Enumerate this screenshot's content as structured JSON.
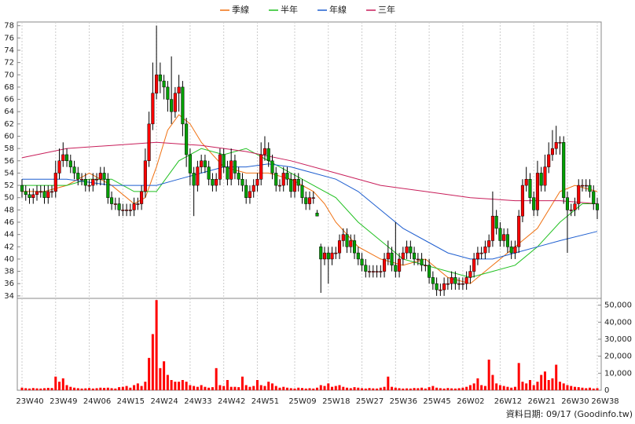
{
  "chart_data": {
    "type": "candlestick",
    "legend": [
      {
        "name": "季線",
        "color": "#f07010"
      },
      {
        "name": "半年",
        "color": "#20c020"
      },
      {
        "name": "年線",
        "color": "#1f5fd0"
      },
      {
        "name": "三年",
        "color": "#c81e5a"
      }
    ],
    "footer": "資料日期: 09/17 (Goodinfo.tw)",
    "up_color": "#ff0000",
    "down_color": "#00a000",
    "grid": true,
    "categories": [
      "23W40",
      null,
      null,
      null,
      null,
      null,
      null,
      null,
      null,
      "23W49",
      null,
      null,
      null,
      null,
      null,
      null,
      null,
      null,
      "24W06",
      null,
      null,
      null,
      null,
      null,
      null,
      null,
      null,
      "24W15",
      null,
      null,
      null,
      null,
      null,
      null,
      null,
      null,
      "24W24",
      null,
      null,
      null,
      null,
      null,
      null,
      null,
      null,
      "24W33",
      null,
      null,
      null,
      null,
      null,
      null,
      null,
      null,
      "24W42",
      null,
      null,
      null,
      null,
      null,
      null,
      null,
      null,
      "24W51",
      null,
      null,
      null,
      null,
      null,
      null,
      null,
      null,
      null,
      "25W09",
      null,
      null,
      null,
      null,
      null,
      null,
      null,
      null,
      "25W18",
      null,
      null,
      null,
      null,
      null,
      null,
      null,
      null,
      "25W27",
      null,
      null,
      null,
      null,
      null,
      null,
      null,
      null,
      "25W36",
      null,
      null,
      null,
      null,
      null,
      null,
      null,
      null,
      "25W45",
      null,
      null,
      null,
      null,
      null,
      null,
      null,
      null,
      "26W02",
      null,
      null,
      null,
      null,
      null,
      null,
      null,
      null,
      null,
      "26W12",
      null,
      null,
      null,
      null,
      null,
      null,
      null,
      null,
      "26W21",
      null,
      null,
      null,
      null,
      null,
      null,
      null,
      null,
      "26W30",
      null,
      null,
      null,
      null,
      null,
      null,
      null,
      "26W38"
    ],
    "open": [
      52,
      51,
      50.5,
      50,
      50.5,
      51,
      51,
      50,
      51,
      51,
      54,
      56,
      57,
      56,
      55,
      54,
      53,
      53,
      52,
      52,
      53,
      53,
      54,
      53,
      50,
      49,
      49,
      48,
      48,
      48,
      48,
      49,
      49,
      51,
      56,
      62,
      67,
      70,
      69,
      68,
      66,
      64,
      67,
      68,
      62,
      57,
      54,
      52,
      55,
      56,
      55,
      53,
      52,
      53,
      57,
      55,
      53,
      56,
      54,
      53,
      52,
      50,
      51,
      52,
      53,
      57,
      58,
      56,
      54,
      52,
      52,
      54,
      53,
      51,
      53,
      52,
      50,
      49,
      50,
      47.5,
      42,
      40,
      41,
      40,
      41,
      41,
      43,
      44,
      42,
      43,
      41,
      40,
      39,
      38,
      38,
      38,
      38,
      38,
      40,
      41,
      39,
      38,
      40,
      41,
      42,
      41,
      40,
      40,
      39,
      39,
      37,
      36,
      35,
      35,
      36,
      36,
      37,
      36,
      36,
      36,
      37,
      38,
      40,
      41,
      41,
      42,
      43,
      47,
      45,
      43,
      44,
      42,
      41,
      42,
      47,
      52,
      53,
      50,
      48,
      54,
      52,
      55,
      57,
      58,
      59,
      59,
      50,
      48,
      48,
      49,
      52,
      52,
      52,
      51,
      49
    ],
    "high": [
      53,
      52,
      51.5,
      51.5,
      52,
      52,
      52,
      52,
      52,
      56,
      58,
      59,
      58,
      57,
      56,
      55,
      54,
      54,
      53,
      54,
      54,
      55,
      55,
      54,
      51,
      50,
      50,
      49,
      49,
      49,
      50,
      50,
      52,
      58,
      64,
      72,
      78,
      72,
      70,
      69,
      73,
      68,
      70,
      69,
      63,
      58,
      55,
      56,
      57,
      57,
      56,
      54,
      54,
      58,
      58,
      56,
      58,
      57,
      55,
      54,
      53,
      52,
      53,
      54,
      59,
      60,
      59,
      57,
      55,
      53,
      55,
      55,
      54,
      54,
      54,
      53,
      51,
      51,
      51,
      48,
      42.5,
      42,
      42,
      42,
      42,
      44,
      45,
      45,
      44,
      44,
      42,
      41,
      40,
      39,
      39,
      39,
      39,
      41,
      43,
      42,
      46,
      41,
      42,
      43,
      43,
      42,
      41,
      41,
      40,
      40,
      38,
      37,
      36,
      37,
      37,
      38,
      38,
      37,
      37,
      38,
      39,
      41,
      42,
      42,
      43,
      44,
      51,
      48,
      46,
      45,
      45,
      43,
      43,
      48,
      53,
      55,
      54,
      51,
      56,
      55,
      57,
      59,
      61,
      61.7,
      60,
      60,
      51,
      49,
      50,
      53,
      53,
      53,
      53,
      52,
      50
    ],
    "low": [
      50,
      49.5,
      49,
      49,
      49.5,
      50,
      49,
      49,
      50,
      50,
      53,
      55,
      55,
      54,
      53,
      52,
      52,
      51,
      51,
      51,
      52,
      52,
      52,
      49,
      48,
      48,
      47,
      47,
      47,
      47,
      47,
      48,
      48,
      50,
      55,
      61,
      66,
      67,
      66,
      64,
      62,
      63,
      64,
      60,
      55,
      52,
      47,
      51,
      54,
      54,
      52,
      51,
      51,
      52,
      54,
      52,
      52,
      53,
      52,
      51,
      49,
      49,
      50,
      51,
      52,
      56,
      55,
      53,
      51,
      51,
      51,
      52,
      50,
      50,
      51,
      49,
      48,
      48,
      49,
      47,
      34.5,
      39,
      36,
      39,
      40,
      40,
      42,
      41,
      41,
      40,
      39,
      38,
      37,
      37,
      37,
      37,
      37,
      37,
      39,
      38,
      37,
      37,
      39,
      40,
      40,
      39,
      39,
      38,
      38,
      36,
      35,
      34,
      34,
      34,
      35,
      35,
      35,
      35,
      35,
      35,
      36,
      37,
      39,
      40,
      40,
      41,
      42,
      44,
      42,
      42,
      41,
      40,
      40,
      41,
      46,
      51,
      49,
      47,
      47,
      51,
      51,
      54,
      56,
      57,
      57,
      49,
      41,
      47,
      47,
      48,
      51,
      51,
      50,
      48,
      46.5
    ],
    "close": [
      51,
      50.5,
      50,
      50.5,
      51,
      51,
      50,
      51,
      51,
      54,
      56,
      57,
      56,
      55,
      54,
      53,
      53,
      52,
      52,
      53,
      53,
      54,
      53,
      50,
      49,
      49,
      48,
      48,
      48,
      48,
      49,
      49,
      51,
      56,
      62,
      67,
      70,
      69,
      68,
      66,
      64,
      67,
      68,
      62,
      57,
      54,
      52,
      55,
      56,
      55,
      53,
      52,
      53,
      57,
      55,
      53,
      56,
      54,
      53,
      52,
      50,
      51,
      52,
      53,
      57,
      58,
      56,
      54,
      52,
      52,
      54,
      53,
      51,
      53,
      52,
      50,
      49,
      50,
      50,
      47,
      40,
      41,
      40,
      41,
      41,
      43,
      44,
      42,
      43,
      41,
      40,
      39,
      38,
      38,
      38,
      38,
      38,
      40,
      41,
      39,
      38,
      40,
      41,
      42,
      41,
      40,
      40,
      39,
      39,
      37,
      36,
      35,
      35,
      36,
      36,
      37,
      36,
      36,
      36,
      37,
      38,
      40,
      41,
      41,
      42,
      43,
      47,
      45,
      43,
      44,
      42,
      41,
      42,
      47,
      52,
      53,
      50,
      48,
      54,
      52,
      55,
      57,
      58,
      59,
      59,
      50,
      48,
      48,
      49,
      52,
      52,
      52,
      51,
      49,
      48
    ],
    "ylim": [
      33.6,
      78.6
    ],
    "yticks": [
      34,
      36,
      38,
      40,
      42,
      44,
      46,
      48,
      50,
      52,
      54,
      56,
      58,
      60,
      62,
      64,
      66,
      68,
      70,
      72,
      74,
      76,
      78
    ],
    "series": [
      {
        "name": "季線",
        "color": "#f07010",
        "x": [
          0,
          6,
          12,
          18,
          24,
          30,
          33,
          36,
          39,
          42,
          45,
          48,
          54,
          60,
          66,
          72,
          78,
          81,
          84,
          90,
          96,
          102,
          108,
          114,
          120,
          126,
          132,
          138,
          144,
          148,
          154
        ],
        "values": [
          51,
          51,
          52,
          54,
          52,
          49,
          50,
          55,
          61,
          63.5,
          62,
          59,
          55,
          54,
          54,
          53,
          51,
          49,
          46,
          42,
          40,
          39,
          40,
          37,
          36,
          39,
          42,
          45,
          51,
          52,
          51
        ]
      },
      {
        "name": "半年",
        "color": "#20c020",
        "x": [
          0,
          6,
          12,
          18,
          24,
          30,
          36,
          42,
          48,
          54,
          60,
          66,
          72,
          78,
          84,
          90,
          96,
          102,
          108,
          114,
          120,
          126,
          132,
          138,
          144,
          150,
          154
        ],
        "values": [
          52,
          52,
          52,
          53,
          53,
          51,
          51,
          56,
          58,
          57,
          58,
          56,
          54,
          52,
          50,
          46,
          43,
          40,
          39,
          38,
          37,
          38,
          39,
          42,
          46,
          49,
          49
        ]
      },
      {
        "name": "年線",
        "color": "#1f5fd0",
        "x": [
          0,
          12,
          24,
          36,
          42,
          48,
          54,
          60,
          66,
          72,
          78,
          84,
          90,
          96,
          102,
          108,
          114,
          120,
          126,
          132,
          138,
          144,
          154
        ],
        "values": [
          53,
          53,
          52,
          52,
          53,
          54,
          55,
          55,
          55.5,
          55,
          54,
          53,
          51,
          48,
          45,
          43,
          41,
          40,
          40,
          41,
          42,
          43,
          44.5
        ]
      },
      {
        "name": "三年",
        "color": "#c81e5a",
        "x": [
          0,
          12,
          24,
          36,
          48,
          60,
          72,
          84,
          96,
          108,
          120,
          132,
          144,
          154
        ],
        "values": [
          56.5,
          58,
          58.5,
          59,
          58.5,
          57.5,
          56,
          54,
          52,
          51,
          50,
          49.5,
          49.5,
          49
        ]
      }
    ],
    "volume": {
      "color": "#ff0000",
      "ylim": [
        0,
        54000
      ],
      "yticks": [
        0,
        {
          "value": 10000,
          "label": "10,000"
        },
        {
          "value": 20000,
          "label": "20,000"
        },
        {
          "value": 30000,
          "label": "30,000"
        },
        {
          "value": 40000,
          "label": "40,000"
        },
        {
          "value": 50000,
          "label": "50,000"
        }
      ],
      "values": [
        1500,
        1200,
        1000,
        1300,
        1100,
        1000,
        1200,
        1400,
        1300,
        8000,
        5000,
        7000,
        3000,
        2000,
        1500,
        1200,
        1000,
        1100,
        1300,
        1000,
        1200,
        1500,
        1400,
        1500,
        1200,
        1000,
        1800,
        2000,
        2500,
        1500,
        3000,
        4000,
        2500,
        5000,
        19000,
        33000,
        53000,
        13000,
        17000,
        9000,
        6000,
        5000,
        5000,
        6000,
        5000,
        3000,
        2500,
        2000,
        3000,
        2000,
        1500,
        1800,
        13000,
        3000,
        2500,
        6000,
        2000,
        2000,
        1800,
        8000,
        3000,
        2000,
        2500,
        6000,
        3000,
        2500,
        5000,
        4000,
        2500,
        1500,
        2000,
        1500,
        1200,
        1000,
        1500,
        1300,
        1000,
        1200,
        1000,
        1500,
        3000,
        2500,
        4000,
        2000,
        2500,
        3000,
        2000,
        1500,
        1200,
        1800,
        1500,
        1200,
        1000,
        1300,
        1100,
        1000,
        1500,
        2000,
        8000,
        2000,
        1500,
        1200,
        1000,
        1100,
        1000,
        1300,
        1200,
        1500,
        1000,
        1800,
        2500,
        1500,
        1200,
        1000,
        1300,
        1100,
        1000,
        1200,
        1500,
        2000,
        3000,
        4000,
        7000,
        3000,
        2500,
        18000,
        9000,
        4000,
        3000,
        2500,
        2000,
        1500,
        2000,
        16000,
        5000,
        4000,
        6000,
        3000,
        5000,
        9000,
        11000,
        6000,
        7000,
        15000,
        5000,
        4000,
        3000,
        2500,
        2000,
        1800,
        1500,
        1200,
        1500,
        1000,
        1200
      ]
    }
  }
}
